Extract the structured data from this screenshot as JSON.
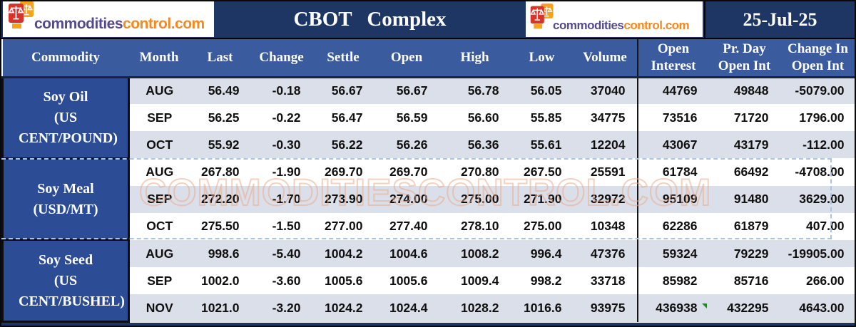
{
  "brand": {
    "name_part1": "commodities",
    "name_part2": "control.com"
  },
  "header_bar": {
    "title": "CBOT Complex",
    "date": "25-Jul-25"
  },
  "watermark": "COMMODITIESCONTROL.COM",
  "table": {
    "columns": [
      "Commodity",
      "Month",
      "Last",
      "Change",
      "Settle",
      "Open",
      "High",
      "Low",
      "Volume",
      "Open Interest",
      "Pr. Day Open Int",
      "Change In Open Int"
    ],
    "groups": [
      {
        "name": "Soy Oil",
        "unit": "(US CENT/POUND)",
        "rows": [
          {
            "month": "AUG",
            "last": "56.49",
            "change": "-0.18",
            "settle": "56.67",
            "open": "56.67",
            "high": "56.78",
            "low": "56.05",
            "volume": "37040",
            "open_interest": "44769",
            "pr_day_open_int": "49848",
            "change_in_open_int": "-5079.00"
          },
          {
            "month": "SEP",
            "last": "56.25",
            "change": "-0.22",
            "settle": "56.47",
            "open": "56.59",
            "high": "56.60",
            "low": "55.85",
            "volume": "34775",
            "open_interest": "73516",
            "pr_day_open_int": "71720",
            "change_in_open_int": "1796.00"
          },
          {
            "month": "OCT",
            "last": "55.92",
            "change": "-0.30",
            "settle": "56.22",
            "open": "56.26",
            "high": "56.36",
            "low": "55.61",
            "volume": "12204",
            "open_interest": "43067",
            "pr_day_open_int": "43179",
            "change_in_open_int": "-112.00"
          }
        ]
      },
      {
        "name": "Soy Meal",
        "unit": "(USD/MT)",
        "rows": [
          {
            "month": "AUG",
            "last": "267.80",
            "change": "-1.90",
            "settle": "269.70",
            "open": "269.70",
            "high": "270.80",
            "low": "267.50",
            "volume": "25591",
            "open_interest": "61784",
            "pr_day_open_int": "66492",
            "change_in_open_int": "-4708.00"
          },
          {
            "month": "SEP",
            "last": "272.20",
            "change": "-1.70",
            "settle": "273.90",
            "open": "274.00",
            "high": "275.00",
            "low": "271.90",
            "volume": "32972",
            "open_interest": "95109",
            "pr_day_open_int": "91480",
            "change_in_open_int": "3629.00"
          },
          {
            "month": "OCT",
            "last": "275.50",
            "change": "-1.50",
            "settle": "277.00",
            "open": "277.40",
            "high": "278.10",
            "low": "275.00",
            "volume": "10348",
            "open_interest": "62286",
            "pr_day_open_int": "61879",
            "change_in_open_int": "407.00"
          }
        ]
      },
      {
        "name": "Soy Seed",
        "unit": "(US CENT/BUSHEL)",
        "rows": [
          {
            "month": "AUG",
            "last": "998.6",
            "change": "-5.40",
            "settle": "1004.2",
            "open": "1004.6",
            "high": "1008.2",
            "low": "996.4",
            "volume": "47376",
            "open_interest": "59324",
            "pr_day_open_int": "79229",
            "change_in_open_int": "-19905.00"
          },
          {
            "month": "SEP",
            "last": "1002.0",
            "change": "-3.60",
            "settle": "1005.6",
            "open": "1005.6",
            "high": "1009.4",
            "low": "998.2",
            "volume": "33718",
            "open_interest": "85982",
            "pr_day_open_int": "85716",
            "change_in_open_int": "266.00"
          },
          {
            "month": "NOV",
            "last": "1021.0",
            "change": "-3.20",
            "settle": "1024.2",
            "open": "1024.4",
            "high": "1028.2",
            "low": "1016.6",
            "volume": "93975",
            "open_interest": "436938",
            "pr_day_open_int": "432295",
            "change_in_open_int": "4643.00"
          }
        ]
      }
    ]
  },
  "chart_data": {
    "type": "table",
    "title": "CBOT Complex",
    "date": "25-Jul-25",
    "columns": [
      "Commodity",
      "Month",
      "Last",
      "Change",
      "Settle",
      "Open",
      "High",
      "Low",
      "Volume",
      "Open Interest",
      "Pr. Day Open Int",
      "Change In Open Int"
    ],
    "rows": [
      [
        "Soy Oil (US CENT/POUND)",
        "AUG",
        56.49,
        -0.18,
        56.67,
        56.67,
        56.78,
        56.05,
        37040,
        44769,
        49848,
        -5079.0
      ],
      [
        "Soy Oil (US CENT/POUND)",
        "SEP",
        56.25,
        -0.22,
        56.47,
        56.59,
        56.6,
        55.85,
        34775,
        73516,
        71720,
        1796.0
      ],
      [
        "Soy Oil (US CENT/POUND)",
        "OCT",
        55.92,
        -0.3,
        56.22,
        56.26,
        56.36,
        55.61,
        12204,
        43067,
        43179,
        -112.0
      ],
      [
        "Soy Meal (USD/MT)",
        "AUG",
        267.8,
        -1.9,
        269.7,
        269.7,
        270.8,
        267.5,
        25591,
        61784,
        66492,
        -4708.0
      ],
      [
        "Soy Meal (USD/MT)",
        "SEP",
        272.2,
        -1.7,
        273.9,
        274.0,
        275.0,
        271.9,
        32972,
        95109,
        91480,
        3629.0
      ],
      [
        "Soy Meal (USD/MT)",
        "OCT",
        275.5,
        -1.5,
        277.0,
        277.4,
        278.1,
        275.0,
        10348,
        62286,
        61879,
        407.0
      ],
      [
        "Soy Seed (US CENT/BUSHEL)",
        "AUG",
        998.6,
        -5.4,
        1004.2,
        1004.6,
        1008.2,
        996.4,
        47376,
        59324,
        79229,
        -19905.0
      ],
      [
        "Soy Seed (US CENT/BUSHEL)",
        "SEP",
        1002.0,
        -3.6,
        1005.6,
        1005.6,
        1009.4,
        998.2,
        33718,
        85982,
        85716,
        266.0
      ],
      [
        "Soy Seed (US CENT/BUSHEL)",
        "NOV",
        1021.0,
        -3.2,
        1024.2,
        1024.4,
        1028.2,
        1016.6,
        93975,
        436938,
        432295,
        4643.0
      ]
    ]
  }
}
